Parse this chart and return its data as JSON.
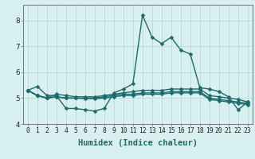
{
  "xlabel": "Humidex (Indice chaleur)",
  "x_values": [
    0,
    1,
    2,
    3,
    4,
    5,
    6,
    7,
    8,
    9,
    10,
    11,
    12,
    13,
    14,
    15,
    16,
    17,
    18,
    19,
    20,
    21,
    22,
    23
  ],
  "series": [
    [
      5.3,
      5.45,
      5.1,
      5.1,
      4.6,
      4.6,
      4.55,
      4.5,
      4.6,
      5.2,
      5.35,
      5.55,
      8.2,
      7.35,
      7.1,
      7.35,
      6.85,
      6.7,
      5.4,
      5.35,
      5.25,
      5.05,
      4.55,
      4.85
    ],
    [
      5.3,
      5.1,
      5.0,
      5.15,
      5.1,
      5.05,
      5.05,
      5.05,
      5.1,
      5.15,
      5.2,
      5.25,
      5.3,
      5.3,
      5.3,
      5.35,
      5.35,
      5.35,
      5.35,
      5.1,
      5.05,
      5.0,
      4.95,
      4.85
    ],
    [
      5.3,
      5.1,
      5.0,
      5.05,
      5.0,
      5.0,
      5.0,
      5.0,
      5.05,
      5.1,
      5.15,
      5.15,
      5.2,
      5.2,
      5.2,
      5.25,
      5.25,
      5.25,
      5.25,
      5.0,
      4.95,
      4.9,
      4.85,
      4.8
    ],
    [
      5.3,
      5.1,
      5.0,
      5.05,
      5.0,
      5.0,
      4.98,
      4.98,
      5.0,
      5.05,
      5.1,
      5.1,
      5.15,
      5.15,
      5.15,
      5.2,
      5.2,
      5.2,
      5.2,
      4.95,
      4.9,
      4.85,
      4.8,
      4.75
    ]
  ],
  "line_color": "#1a6b6b",
  "marker": "D",
  "markersize": 2.5,
  "linewidth": 1.0,
  "bg_color": "#d9f0f0",
  "grid_color": "#b8d8d8",
  "ylim": [
    4.0,
    8.6
  ],
  "yticks": [
    4,
    5,
    6,
    7,
    8
  ],
  "xticks": [
    0,
    1,
    2,
    3,
    4,
    5,
    6,
    7,
    8,
    9,
    10,
    11,
    12,
    13,
    14,
    15,
    16,
    17,
    18,
    19,
    20,
    21,
    22,
    23
  ],
  "tick_label_fontsize": 5.8,
  "ylabel_fontsize": 7.0,
  "xlabel_fontsize": 7.5
}
